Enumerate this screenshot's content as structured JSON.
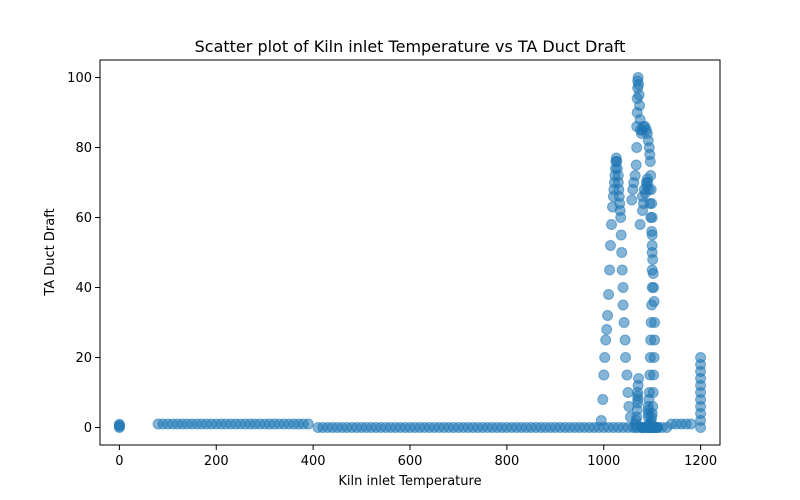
{
  "chart_data": {
    "type": "scatter",
    "title": "Scatter plot of Kiln inlet Temperature vs TA Duct Draft",
    "xlabel": "Kiln inlet Temperature",
    "ylabel": "TA Duct Draft",
    "xlim": [
      -40,
      1240
    ],
    "ylim": [
      -5,
      105
    ],
    "xticks": [
      0,
      200,
      400,
      600,
      800,
      1000,
      1200
    ],
    "yticks": [
      0,
      20,
      40,
      60,
      80,
      100
    ],
    "grid": false,
    "marker_color": "#1f77b4",
    "marker_alpha": 0.55,
    "series": [
      {
        "x": [
          0,
          0,
          0,
          0,
          80,
          90,
          100,
          110,
          120,
          130,
          140,
          150,
          160,
          170,
          180,
          190,
          200,
          210,
          220,
          230,
          240,
          250,
          260,
          270,
          280,
          290,
          300,
          310,
          320,
          330,
          340,
          350,
          360,
          370,
          380,
          390,
          410,
          420,
          430,
          440,
          450,
          460,
          470,
          480,
          490,
          500,
          510,
          520,
          530,
          540,
          550,
          560,
          570,
          580,
          590,
          600,
          610,
          620,
          630,
          640,
          650,
          660,
          670,
          680,
          690,
          700,
          710,
          720,
          730,
          740,
          750,
          760,
          770,
          780,
          790,
          800,
          810,
          820,
          830,
          840,
          850,
          860,
          870,
          880,
          890,
          900,
          910,
          920,
          930,
          940,
          950,
          960,
          970,
          980,
          990,
          1000,
          1010,
          1020,
          1030,
          1040,
          1050,
          1060,
          1070,
          1080,
          1090,
          1100,
          1110,
          1120,
          1130,
          1140,
          1150,
          1160,
          1170,
          1180,
          1200,
          1200,
          1200,
          1200,
          1200,
          1200,
          1200,
          1200,
          1200,
          1200,
          1200,
          995,
          998,
          1000,
          1002,
          1004,
          1006,
          1008,
          1010,
          1012,
          1014,
          1016,
          1018,
          1020,
          1021,
          1022,
          1023,
          1024,
          1025,
          1026,
          1027,
          1028,
          1030,
          1030,
          1031,
          1032,
          1033,
          1034,
          1035,
          1036,
          1037,
          1038,
          1040,
          1040,
          1042,
          1044,
          1045,
          1048,
          1050,
          1052,
          1055,
          1058,
          1060,
          1062,
          1065,
          1067,
          1068,
          1068,
          1069,
          1069,
          1070,
          1070,
          1071,
          1072,
          1073,
          1074,
          1075,
          1076,
          1078,
          1080,
          1082,
          1085,
          1088,
          1090,
          1092,
          1094,
          1095,
          1096,
          1097,
          1098,
          1099,
          1100,
          1100,
          1100,
          1100,
          1100,
          1099,
          1098,
          1097,
          1096,
          1095,
          1094,
          1093,
          1092,
          1092,
          1092,
          1092,
          1093,
          1094,
          1095,
          1096,
          1097,
          1098,
          1066,
          1066,
          1067,
          1068,
          1069,
          1070,
          1070,
          1070,
          1070,
          1071,
          1072,
          1080,
          1084,
          1088,
          1090,
          1080,
          1075,
          1082,
          1086,
          1089,
          1091,
          1093,
          1095,
          1097,
          1099,
          1100,
          1101,
          1102,
          1103,
          1104,
          1105,
          1105,
          1104,
          1103,
          1102,
          1101,
          1100,
          1099,
          1098,
          1097,
          1096,
          1078,
          1080,
          1083,
          1086,
          1090,
          1094,
          1098,
          1100,
          1102,
          1104,
          1106,
          1108,
          1110,
          1112
        ],
        "y": [
          0,
          0.3,
          0.6,
          0.9,
          1,
          1,
          1,
          1,
          1,
          1,
          1,
          1,
          1,
          1,
          1,
          1,
          1,
          1,
          1,
          1,
          1,
          1,
          1,
          1,
          1,
          1,
          1,
          1,
          1,
          1,
          1,
          1,
          1,
          1,
          1,
          1,
          0,
          0,
          0,
          0,
          0,
          0,
          0,
          0,
          0,
          0,
          0,
          0,
          0,
          0,
          0,
          0,
          0,
          0,
          0,
          0,
          0,
          0,
          0,
          0,
          0,
          0,
          0,
          0,
          0,
          0,
          0,
          0,
          0,
          0,
          0,
          0,
          0,
          0,
          0,
          0,
          0,
          0,
          0,
          0,
          0,
          0,
          0,
          0,
          0,
          0,
          0,
          0,
          0,
          0,
          0,
          0,
          0,
          0,
          0,
          0,
          0,
          0,
          0,
          0,
          0,
          0,
          0,
          0,
          0,
          0,
          0,
          0,
          0,
          1,
          1,
          1,
          1,
          1,
          0,
          2,
          4,
          6,
          8,
          10,
          12,
          14,
          16,
          18,
          20,
          2,
          8,
          15,
          20,
          25,
          28,
          32,
          38,
          45,
          52,
          58,
          63,
          66,
          68,
          70,
          72,
          74,
          76,
          77,
          76,
          74,
          72,
          70,
          68,
          66,
          64,
          62,
          60,
          55,
          50,
          45,
          40,
          35,
          30,
          25,
          20,
          15,
          10,
          6,
          3,
          65,
          68,
          70,
          72,
          75,
          80,
          86,
          90,
          94,
          97,
          99,
          100,
          98,
          95,
          92,
          88,
          85,
          84,
          85,
          86,
          86,
          85,
          84,
          82,
          80,
          78,
          76,
          72,
          68,
          64,
          60,
          55,
          50,
          45,
          40,
          35,
          30,
          25,
          20,
          15,
          10,
          8,
          6,
          5,
          4,
          3,
          1,
          0,
          0,
          0,
          0,
          0,
          0,
          1,
          2,
          3,
          5,
          7,
          8,
          9,
          10,
          12,
          14,
          66,
          68,
          70,
          71,
          62,
          58,
          64,
          67,
          69,
          70,
          68,
          64,
          60,
          56,
          52,
          48,
          44,
          40,
          36,
          30,
          25,
          20,
          15,
          10,
          6,
          4,
          3,
          2,
          1,
          0,
          0,
          0,
          0,
          0,
          0,
          0,
          0,
          0,
          0,
          0,
          0,
          0,
          0,
          0
        ]
      }
    ]
  }
}
